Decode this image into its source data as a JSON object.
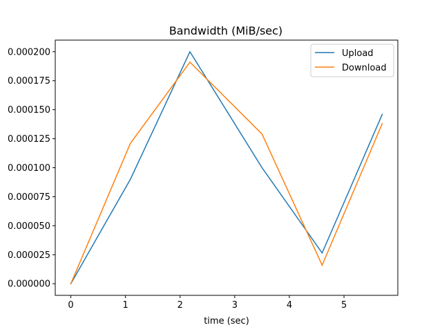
{
  "chart_data": {
    "type": "line",
    "title": "Bandwidth (MiB/sec)",
    "xlabel": "time (sec)",
    "ylabel": "",
    "xlim": [
      -0.285,
      5.985
    ],
    "ylim": [
      -1e-05,
      0.00021
    ],
    "xticks": [
      0,
      1,
      2,
      3,
      4,
      5
    ],
    "xtick_labels": [
      "0",
      "1",
      "2",
      "3",
      "4",
      "5"
    ],
    "yticks": [
      0,
      2.5e-05,
      5e-05,
      7.5e-05,
      0.0001,
      0.000125,
      0.00015,
      0.000175,
      0.0002
    ],
    "ytick_labels": [
      "0.000000",
      "0.000025",
      "0.000050",
      "0.000075",
      "0.000100",
      "0.000125",
      "0.000150",
      "0.000175",
      "0.000200"
    ],
    "grid": false,
    "legend_position": "top-right",
    "series": [
      {
        "name": "Upload",
        "color": "#1f77b4",
        "x": [
          0,
          1.09,
          2.18,
          3.5,
          4.6,
          5.7
        ],
        "y": [
          0,
          9e-05,
          0.0002,
          0.0001,
          2.65e-05,
          0.000146
        ]
      },
      {
        "name": "Download",
        "color": "#ff7f0e",
        "x": [
          0,
          1.09,
          2.18,
          3.5,
          4.6,
          5.7
        ],
        "y": [
          0,
          0.000121,
          0.000191,
          0.000129,
          1.6e-05,
          0.000138
        ]
      }
    ]
  }
}
